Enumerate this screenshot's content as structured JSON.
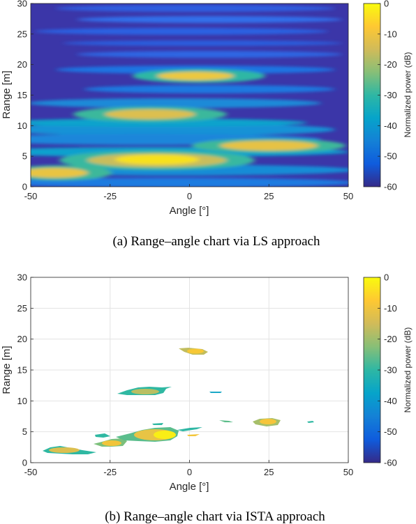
{
  "colors": {
    "parula": [
      "#352a87",
      "#0f5cdd",
      "#1481d6",
      "#06a4ca",
      "#2eb7a4",
      "#87bf77",
      "#d1bb59",
      "#fec832",
      "#f9fb0e"
    ],
    "grid": "#e3e3e3",
    "axis": "#262626"
  },
  "chart_data": [
    {
      "type": "heatmap",
      "xlabel": "Angle [°]",
      "ylabel": "Range [m]",
      "xticks": [
        "-50",
        "-25",
        "0",
        "25",
        "50"
      ],
      "yticks": [
        "0",
        "5",
        "10",
        "15",
        "20",
        "25",
        "30"
      ],
      "xlim": [
        -50,
        50
      ],
      "ylim": [
        0,
        30
      ],
      "grid": false,
      "colorbar": {
        "label": "Normalized power (dB)",
        "ticks": [
          "0",
          "-10",
          "-20",
          "-30",
          "-40",
          "-50",
          "-60"
        ],
        "range": [
          -60,
          0
        ]
      },
      "caption": "(a) Range–angle chart via LS approach",
      "peaks": [
        {
          "angle": -10,
          "range": 4.6,
          "power_db": 0
        },
        {
          "angle": -40,
          "range": 2.0,
          "power_db": -4
        },
        {
          "angle": 25,
          "range": 6.8,
          "power_db": -6
        },
        {
          "angle": -12,
          "range": 11.5,
          "power_db": -10
        },
        {
          "angle": 2,
          "range": 18.2,
          "power_db": -5
        }
      ]
    },
    {
      "type": "heatmap",
      "xlabel": "Angle [°]",
      "ylabel": "Range [m]",
      "xticks": [
        "-50",
        "-25",
        "0",
        "25",
        "50"
      ],
      "yticks": [
        "0",
        "5",
        "10",
        "15",
        "20",
        "25",
        "30"
      ],
      "xlim": [
        -50,
        50
      ],
      "ylim": [
        0,
        30
      ],
      "grid": true,
      "colorbar": {
        "label": "Normalized power (dB)",
        "ticks": [
          "0",
          "-10",
          "-20",
          "-30",
          "-40",
          "-50",
          "-60"
        ],
        "range": [
          -60,
          0
        ]
      },
      "caption": "(b) Range–angle chart via ISTA approach",
      "peaks": [
        {
          "angle": -9,
          "range": 4.4,
          "power_db": 0
        },
        {
          "angle": -40,
          "range": 2.0,
          "power_db": -10
        },
        {
          "angle": -22,
          "range": 3.2,
          "power_db": -8
        },
        {
          "angle": 24,
          "range": 6.6,
          "power_db": -6
        },
        {
          "angle": -14,
          "range": 11.6,
          "power_db": -12
        },
        {
          "angle": 2,
          "range": 18.0,
          "power_db": -6
        }
      ]
    }
  ]
}
